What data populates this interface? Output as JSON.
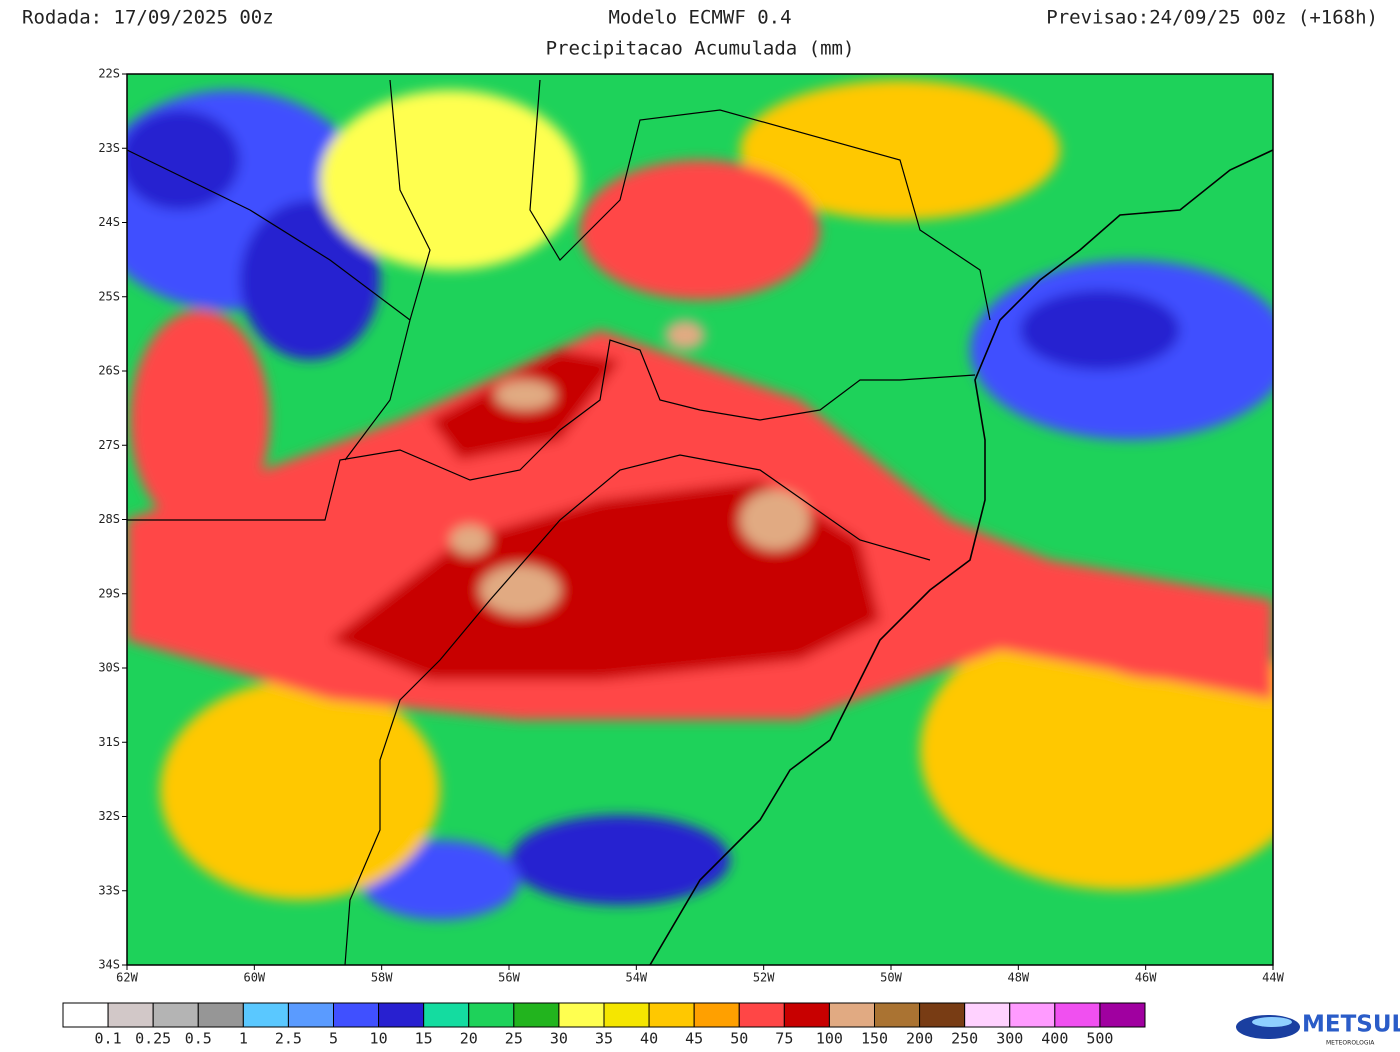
{
  "header": {
    "left": "Rodada: 17/09/2025 00z",
    "center": "Modelo ECMWF 0.4",
    "right": "Previsao:24/09/25 00z (+168h)",
    "subtitle": "Precipitacao Acumulada (mm)"
  },
  "map": {
    "lat_labels": [
      "22S",
      "23S",
      "24S",
      "25S",
      "26S",
      "27S",
      "28S",
      "29S",
      "30S",
      "31S",
      "32S",
      "33S",
      "34S"
    ],
    "lon_labels": [
      "62W",
      "60W",
      "58W",
      "56W",
      "54W",
      "52W",
      "50W",
      "48W",
      "46W",
      "44W"
    ]
  },
  "colorbar": {
    "colors": [
      "#ffffff",
      "#d2c8c8",
      "#b4b4b4",
      "#969696",
      "#5ac8ff",
      "#5a9bff",
      "#4050ff",
      "#2820d0",
      "#14dca0",
      "#1ed25a",
      "#22b41e",
      "#ffff50",
      "#f5e600",
      "#ffc800",
      "#ffa000",
      "#ff4646",
      "#c80000",
      "#e1aa82",
      "#aa7332",
      "#783c14",
      "#ffd2ff",
      "#ff9bff",
      "#f050f0",
      "#a000a0"
    ],
    "labels": [
      "0.1",
      "0.25",
      "0.5",
      "1",
      "2.5",
      "5",
      "10",
      "15",
      "20",
      "25",
      "30",
      "35",
      "40",
      "45",
      "50",
      "75",
      "100",
      "150",
      "200",
      "250",
      "300",
      "400",
      "500"
    ]
  },
  "logo": {
    "name": "METSUL",
    "sub": "METEOROLOGIA"
  }
}
